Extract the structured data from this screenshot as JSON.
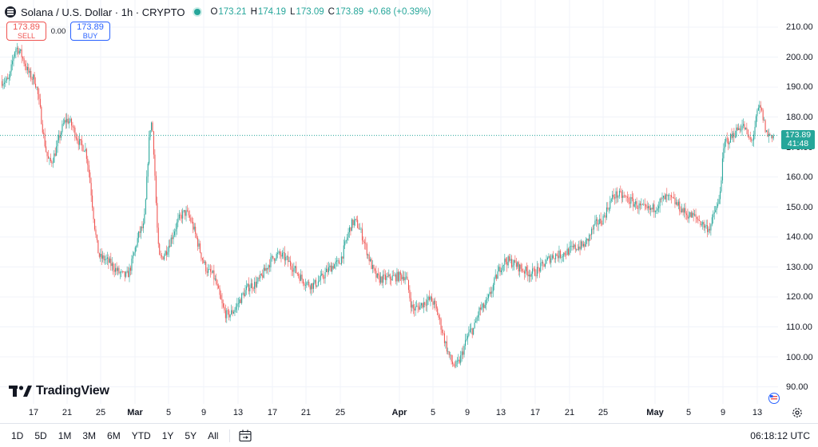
{
  "legend": {
    "symbol_title": "Solana / U.S. Dollar · 1h · CRYPTO",
    "open_key": "O",
    "open_value": "173.21",
    "high_key": "H",
    "high_value": "174.19",
    "low_key": "L",
    "low_value": "173.09",
    "close_key": "C",
    "close_value": "173.89",
    "change_value": "+0.68 (+0.39%)"
  },
  "trade": {
    "sell_price": "173.89",
    "sell_label": "SELL",
    "spread": "0.00",
    "buy_price": "173.89",
    "buy_label": "BUY"
  },
  "watermark": {
    "text": "TradingView"
  },
  "price_axis": {
    "labels": [
      "210.00",
      "200.00",
      "190.00",
      "180.00",
      "170.00",
      "160.00",
      "150.00",
      "140.00",
      "130.00",
      "120.00",
      "110.00",
      "100.00",
      "90.00"
    ],
    "last_price": "173.89",
    "countdown": "41:48"
  },
  "time_axis": {
    "labels": [
      "17",
      "21",
      "25",
      "Mar",
      "5",
      "9",
      "13",
      "17",
      "21",
      "25",
      "Apr",
      "5",
      "9",
      "13",
      "17",
      "21",
      "25",
      "May",
      "5",
      "9",
      "13"
    ]
  },
  "bottom_bar": {
    "ranges": [
      "1D",
      "5D",
      "1M",
      "3M",
      "6M",
      "YTD",
      "1Y",
      "5Y",
      "All"
    ],
    "clock": "06:18:12 UTC"
  },
  "colors": {
    "up": "#26a69a",
    "down": "#ef5350",
    "grid": "#f0f3fa",
    "text": "#131722",
    "accent": "#2962ff"
  },
  "icons": {
    "symbol": "solana-logo-icon",
    "settings": "gear-icon",
    "date_range": "calendar-range-icon",
    "events": "flag-icon"
  },
  "chart_data": {
    "type": "candlestick",
    "title": "Solana / U.S. Dollar · 1h · CRYPTO",
    "ylim": [
      86,
      214
    ],
    "key_points": [
      {
        "x": "Feb 14",
        "y": 192
      },
      {
        "x": "Feb 15",
        "y": 203
      },
      {
        "x": "Feb 17",
        "y": 193
      },
      {
        "x": "Feb 19",
        "y": 165
      },
      {
        "x": "Feb 21",
        "y": 179
      },
      {
        "x": "Feb 23",
        "y": 170
      },
      {
        "x": "Feb 25",
        "y": 133
      },
      {
        "x": "Feb 28",
        "y": 127
      },
      {
        "x": "Mar 1",
        "y": 143
      },
      {
        "x": "Mar 2",
        "y": 178
      },
      {
        "x": "Mar 3",
        "y": 133
      },
      {
        "x": "Mar 6",
        "y": 148
      },
      {
        "x": "Mar 9",
        "y": 128
      },
      {
        "x": "Mar 11",
        "y": 114
      },
      {
        "x": "Mar 14",
        "y": 124
      },
      {
        "x": "Mar 17",
        "y": 134
      },
      {
        "x": "Mar 21",
        "y": 124
      },
      {
        "x": "Mar 24",
        "y": 131
      },
      {
        "x": "Mar 26",
        "y": 145
      },
      {
        "x": "Mar 29",
        "y": 126
      },
      {
        "x": "Apr 1",
        "y": 127
      },
      {
        "x": "Apr 2",
        "y": 116
      },
      {
        "x": "Apr 4",
        "y": 119
      },
      {
        "x": "Apr 7",
        "y": 97
      },
      {
        "x": "Apr 9",
        "y": 109
      },
      {
        "x": "Apr 10",
        "y": 116
      },
      {
        "x": "Apr 13",
        "y": 132
      },
      {
        "x": "Apr 16",
        "y": 128
      },
      {
        "x": "Apr 19",
        "y": 134
      },
      {
        "x": "Apr 22",
        "y": 137
      },
      {
        "x": "Apr 24",
        "y": 145
      },
      {
        "x": "Apr 26",
        "y": 154
      },
      {
        "x": "Apr 30",
        "y": 149
      },
      {
        "x": "May 2",
        "y": 153
      },
      {
        "x": "May 5",
        "y": 147
      },
      {
        "x": "May 7",
        "y": 143
      },
      {
        "x": "May 8",
        "y": 150
      },
      {
        "x": "May 9",
        "y": 172
      },
      {
        "x": "May 11",
        "y": 177
      },
      {
        "x": "May 12",
        "y": 172
      },
      {
        "x": "May 13",
        "y": 183
      },
      {
        "x": "May 14",
        "y": 174
      }
    ]
  }
}
